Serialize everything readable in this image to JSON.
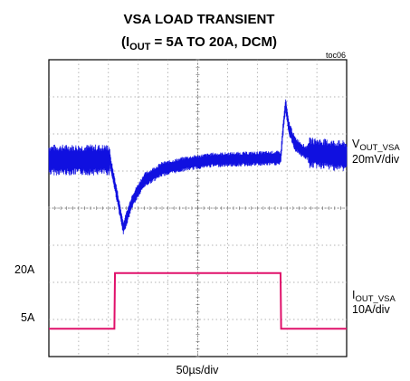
{
  "chart_data": {
    "type": "line",
    "title": "VSA LOAD TRANSIENT",
    "subtitle": {
      "prefix": "(I",
      "sub": "OUT",
      "suffix": " = 5A TO 20A, DCM)"
    },
    "figure_id": "toc06",
    "xlabel": "50µs/div",
    "x_divisions": 10,
    "y_divisions": 8,
    "grid": true,
    "series": [
      {
        "name_main": "V",
        "name_sub": "OUT_VSA",
        "scale": "20mV/div",
        "color": "#1010e0",
        "baseline_div": 5.3,
        "points": [
          [
            0,
            5.3
          ],
          [
            2.05,
            5.3
          ],
          [
            2.3,
            4.3
          ],
          [
            2.5,
            3.45
          ],
          [
            2.8,
            4.2
          ],
          [
            3.2,
            4.75
          ],
          [
            3.8,
            5.05
          ],
          [
            4.6,
            5.2
          ],
          [
            5.5,
            5.3
          ],
          [
            7.79,
            5.35
          ],
          [
            7.85,
            6.0
          ],
          [
            7.95,
            6.8
          ],
          [
            8.05,
            6.2
          ],
          [
            8.25,
            5.75
          ],
          [
            8.6,
            5.5
          ],
          [
            10,
            5.4
          ]
        ]
      },
      {
        "name_main": "I",
        "name_sub": "OUT_VSA",
        "scale": "10A/div",
        "color": "#e0106a",
        "level_labels": [
          "20A",
          "5A"
        ],
        "points": [
          [
            0,
            0.75
          ],
          [
            2.2,
            0.75
          ],
          [
            2.22,
            2.25
          ],
          [
            7.78,
            2.25
          ],
          [
            7.8,
            0.75
          ],
          [
            10,
            0.75
          ]
        ]
      }
    ]
  }
}
